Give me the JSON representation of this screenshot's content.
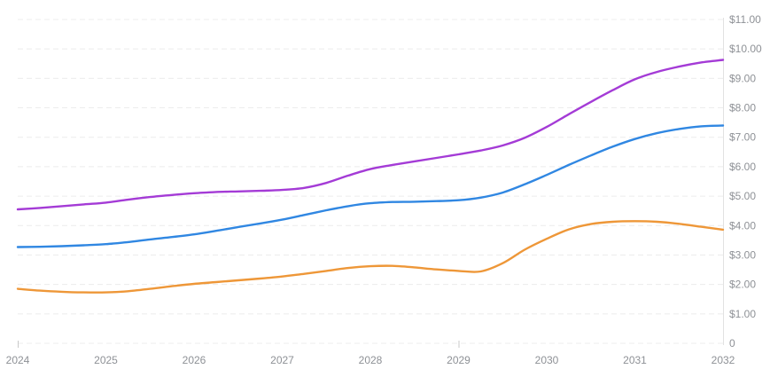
{
  "chart_data": {
    "type": "line",
    "title": "",
    "xlabel": "",
    "ylabel": "",
    "legend": "none",
    "grid": "horizontal-dashed",
    "x_range": [
      2024,
      2032
    ],
    "y_range": [
      0,
      11
    ],
    "x_tick_labels": [
      "2024",
      "2025",
      "2026",
      "2027",
      "2028",
      "2029",
      "2030",
      "2031",
      "2032"
    ],
    "x_tick_values": [
      2024,
      2025,
      2026,
      2027,
      2028,
      2029,
      2030,
      2031,
      2032
    ],
    "x_axis_tick_marks": [
      2024,
      2029
    ],
    "y_ticks": [
      {
        "value": 11,
        "label": "$11.00"
      },
      {
        "value": 10,
        "label": "$10.00"
      },
      {
        "value": 9,
        "label": "$9.00"
      },
      {
        "value": 8,
        "label": "$8.00"
      },
      {
        "value": 7,
        "label": "$7.00"
      },
      {
        "value": 6,
        "label": "$6.00"
      },
      {
        "value": 5,
        "label": "$5.00"
      },
      {
        "value": 4,
        "label": "$4.00"
      },
      {
        "value": 3,
        "label": "$3.00"
      },
      {
        "value": 2,
        "label": "$2.00"
      },
      {
        "value": 1,
        "label": "$1.00"
      },
      {
        "value": 0,
        "label": "0"
      }
    ],
    "x": [
      2024,
      2024.25,
      2024.5,
      2024.75,
      2025,
      2025.25,
      2025.5,
      2025.75,
      2026,
      2026.25,
      2026.5,
      2026.75,
      2027,
      2027.25,
      2027.5,
      2027.75,
      2028,
      2028.25,
      2028.5,
      2028.75,
      2029,
      2029.25,
      2029.5,
      2029.75,
      2030,
      2030.25,
      2030.5,
      2030.75,
      2031,
      2031.25,
      2031.5,
      2031.75,
      2032
    ],
    "series": [
      {
        "name": "purple",
        "color": "#a43bd6",
        "values": [
          4.55,
          4.6,
          4.66,
          4.72,
          4.78,
          4.88,
          4.97,
          5.04,
          5.1,
          5.14,
          5.16,
          5.18,
          5.21,
          5.28,
          5.45,
          5.7,
          5.92,
          6.06,
          6.18,
          6.3,
          6.42,
          6.55,
          6.72,
          6.98,
          7.35,
          7.78,
          8.2,
          8.6,
          8.97,
          9.22,
          9.4,
          9.54,
          9.63
        ]
      },
      {
        "name": "blue",
        "color": "#3087e2",
        "values": [
          3.27,
          3.28,
          3.3,
          3.33,
          3.37,
          3.44,
          3.53,
          3.61,
          3.7,
          3.82,
          3.95,
          4.07,
          4.2,
          4.36,
          4.52,
          4.66,
          4.76,
          4.8,
          4.81,
          4.83,
          4.86,
          4.95,
          5.12,
          5.4,
          5.72,
          6.06,
          6.38,
          6.68,
          6.94,
          7.14,
          7.28,
          7.37,
          7.4
        ]
      },
      {
        "name": "orange",
        "color": "#ee9738",
        "values": [
          1.85,
          1.79,
          1.75,
          1.73,
          1.73,
          1.77,
          1.85,
          1.94,
          2.02,
          2.08,
          2.14,
          2.2,
          2.27,
          2.36,
          2.46,
          2.56,
          2.62,
          2.63,
          2.58,
          2.51,
          2.46,
          2.44,
          2.72,
          3.18,
          3.55,
          3.87,
          4.05,
          4.13,
          4.15,
          4.13,
          4.06,
          3.96,
          3.86
        ]
      }
    ],
    "style": {
      "gridline_color": "#ececec",
      "axis_line_color": "#e2e2e2",
      "tick_mark_color": "#c9c9c9",
      "label_color": "#8e9196",
      "background": "#ffffff",
      "line_width": 2.4
    }
  }
}
